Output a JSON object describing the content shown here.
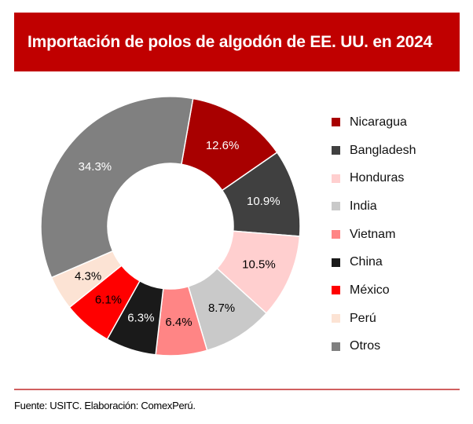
{
  "chart_data": {
    "type": "pie",
    "variant": "donut",
    "title": "Importación de polos de algodón de EE. UU. en 2024",
    "unit": "%",
    "categories": [
      "Nicaragua",
      "Bangladesh",
      "Honduras",
      "India",
      "Vietnam",
      "China",
      "México",
      "Perú",
      "Otros"
    ],
    "values": [
      12.6,
      10.9,
      10.5,
      8.7,
      6.4,
      6.3,
      6.1,
      4.3,
      34.3
    ],
    "data_labels": [
      "12.6%",
      "10.9%",
      "10.5%",
      "8.7%",
      "6.4%",
      "6.3%",
      "6.1%",
      "4.3%",
      "34.3%"
    ],
    "colors": [
      "#a80000",
      "#404040",
      "#ffcfcf",
      "#c9c9c9",
      "#ff8585",
      "#1a1a1a",
      "#ff0000",
      "#fce3d4",
      "#808080"
    ],
    "label_colors": [
      "#ffffff",
      "#ffffff",
      "#000000",
      "#000000",
      "#000000",
      "#ffffff",
      "#000000",
      "#000000",
      "#ffffff"
    ],
    "legend_position": "right"
  },
  "source": "Fuente: USITC. Elaboración: ComexPerú."
}
